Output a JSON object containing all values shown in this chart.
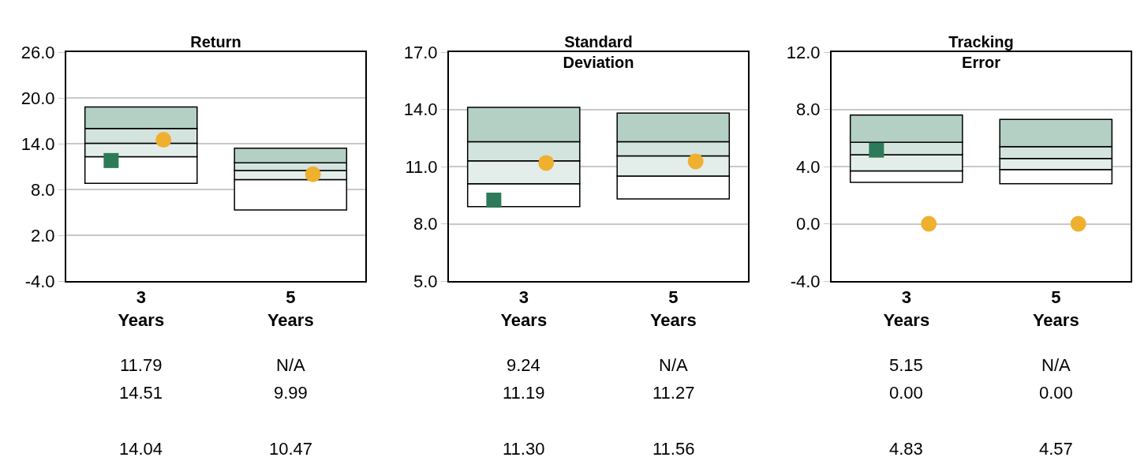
{
  "chart_data": [
    {
      "type": "bar",
      "title": "Return",
      "categories": [
        "3 Years",
        "5 Years"
      ],
      "grid": "y",
      "ylim": [
        -4,
        26
      ],
      "yticks": [
        {
          "value": -4,
          "label": "-4.0"
        },
        {
          "value": 2,
          "label": "2.0"
        },
        {
          "value": 8,
          "label": "8.0"
        },
        {
          "value": 14,
          "label": "14.0"
        },
        {
          "value": 20,
          "label": "20.0"
        },
        {
          "value": 26,
          "label": "26.0"
        }
      ],
      "series": [
        {
          "color": "#ffffff",
          "base": [
            8.8,
            5.3
          ],
          "values": [
            3.5,
            4.0
          ]
        },
        {
          "color": "#e3eeea",
          "base": [
            12.3,
            9.3
          ],
          "values": [
            1.74,
            1.17
          ]
        },
        {
          "color": "#d3e4de",
          "base": [
            14.04,
            10.47
          ],
          "values": [
            1.96,
            1.03
          ]
        },
        {
          "color": "#b4cfc4",
          "base": [
            16.0,
            11.5
          ],
          "values": [
            2.8,
            1.9
          ]
        },
        {
          "type": "scatter",
          "marker": "square",
          "color": "#2d7a5a",
          "values": [
            11.79,
            null
          ]
        },
        {
          "type": "scatter",
          "marker": "circle",
          "color": "#efb030",
          "values": [
            14.51,
            9.99
          ]
        }
      ],
      "annotations": [
        "11.79",
        "N/A",
        "14.51",
        "9.99",
        "14.04",
        "10.47"
      ]
    },
    {
      "type": "bar",
      "title": "Standard Deviation",
      "categories": [
        "3 Years",
        "5 Years"
      ],
      "grid": "y",
      "ylim": [
        5,
        17
      ],
      "yticks": [
        {
          "value": 5,
          "label": "5.0"
        },
        {
          "value": 8,
          "label": "8.0"
        },
        {
          "value": 11,
          "label": "11.0"
        },
        {
          "value": 14,
          "label": "14.0"
        },
        {
          "value": 17,
          "label": "17.0"
        }
      ],
      "series": [
        {
          "color": "#ffffff",
          "base": [
            8.9,
            9.3
          ],
          "values": [
            1.2,
            1.2
          ]
        },
        {
          "color": "#e3eeea",
          "base": [
            10.1,
            10.5
          ],
          "values": [
            1.2,
            1.06
          ]
        },
        {
          "color": "#d3e4de",
          "base": [
            11.3,
            11.56
          ],
          "values": [
            1.0,
            0.74
          ]
        },
        {
          "color": "#b4cfc4",
          "base": [
            12.3,
            12.3
          ],
          "values": [
            1.8,
            1.5
          ]
        },
        {
          "type": "scatter",
          "marker": "square",
          "color": "#2d7a5a",
          "values": [
            9.24,
            null
          ]
        },
        {
          "type": "scatter",
          "marker": "circle",
          "color": "#efb030",
          "values": [
            11.19,
            11.27
          ]
        }
      ],
      "annotations": [
        "9.24",
        "N/A",
        "11.19",
        "11.27",
        "11.30",
        "11.56"
      ]
    },
    {
      "type": "bar",
      "title": "Tracking Error",
      "categories": [
        "3 Years",
        "5 Years"
      ],
      "grid": "y",
      "ylim": [
        -4,
        12
      ],
      "yticks": [
        {
          "value": -4,
          "label": "-4.0"
        },
        {
          "value": 0,
          "label": "0.0"
        },
        {
          "value": 4,
          "label": "4.0"
        },
        {
          "value": 8,
          "label": "8.0"
        },
        {
          "value": 12,
          "label": "12.0"
        }
      ],
      "series": [
        {
          "color": "#ffffff",
          "base": [
            2.9,
            2.8
          ],
          "values": [
            0.8,
            1.0
          ]
        },
        {
          "color": "#e3eeea",
          "base": [
            3.7,
            3.8
          ],
          "values": [
            1.13,
            0.77
          ]
        },
        {
          "color": "#d3e4de",
          "base": [
            4.83,
            4.57
          ],
          "values": [
            0.87,
            0.83
          ]
        },
        {
          "color": "#b4cfc4",
          "base": [
            5.7,
            5.4
          ],
          "values": [
            1.9,
            1.9
          ]
        },
        {
          "type": "scatter",
          "marker": "square",
          "color": "#2d7a5a",
          "values": [
            5.15,
            null
          ]
        },
        {
          "type": "scatter",
          "marker": "circle",
          "color": "#efb030",
          "values": [
            0.0,
            0.0
          ]
        }
      ],
      "annotations": [
        "5.15",
        "N/A",
        "0.00",
        "0.00",
        "4.83",
        "4.57"
      ]
    }
  ]
}
